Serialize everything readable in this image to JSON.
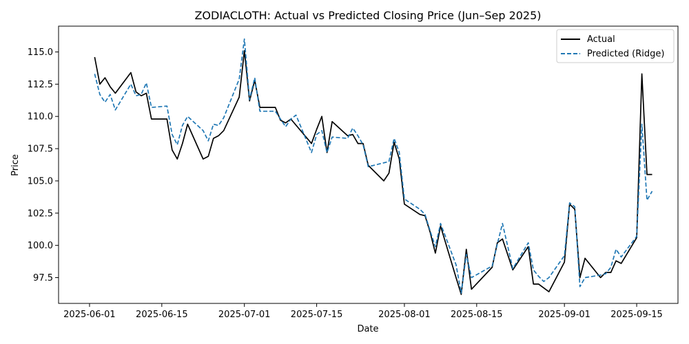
{
  "chart_data": {
    "type": "line",
    "title": "ZODIACLOTH: Actual vs Predicted Closing Price (Jun–Sep 2025)",
    "xlabel": "Date",
    "ylabel": "Price",
    "x_range": [
      "2025-05-26",
      "2025-09-23"
    ],
    "ylim": [
      95.5,
      117.0
    ],
    "x_ticks": [
      "2025-06-01",
      "2025-06-15",
      "2025-07-01",
      "2025-07-15",
      "2025-08-01",
      "2025-08-15",
      "2025-09-01",
      "2025-09-15"
    ],
    "y_ticks": [
      97.5,
      100.0,
      102.5,
      105.0,
      107.5,
      110.0,
      112.5,
      115.0
    ],
    "y_tick_labels": [
      "97.5",
      "100.0",
      "102.5",
      "105.0",
      "107.5",
      "110.0",
      "112.5",
      "115.0"
    ],
    "legend_position": "top-right",
    "series": [
      {
        "name": "Actual",
        "color": "#000000",
        "style": "solid",
        "points": [
          [
            "2025-06-02",
            114.6
          ],
          [
            "2025-06-03",
            112.5
          ],
          [
            "2025-06-04",
            113.0
          ],
          [
            "2025-06-05",
            112.3
          ],
          [
            "2025-06-06",
            111.8
          ],
          [
            "2025-06-09",
            113.4
          ],
          [
            "2025-06-10",
            111.9
          ],
          [
            "2025-06-11",
            111.6
          ],
          [
            "2025-06-12",
            111.8
          ],
          [
            "2025-06-13",
            109.8
          ],
          [
            "2025-06-16",
            109.8
          ],
          [
            "2025-06-17",
            107.4
          ],
          [
            "2025-06-18",
            106.7
          ],
          [
            "2025-06-19",
            107.9
          ],
          [
            "2025-06-20",
            109.4
          ],
          [
            "2025-06-23",
            106.7
          ],
          [
            "2025-06-24",
            106.9
          ],
          [
            "2025-06-25",
            108.3
          ],
          [
            "2025-06-26",
            108.5
          ],
          [
            "2025-06-27",
            108.9
          ],
          [
            "2025-06-30",
            111.5
          ],
          [
            "2025-07-01",
            115.1
          ],
          [
            "2025-07-02",
            111.2
          ],
          [
            "2025-07-03",
            112.8
          ],
          [
            "2025-07-04",
            110.7
          ],
          [
            "2025-07-07",
            110.7
          ],
          [
            "2025-07-08",
            109.7
          ],
          [
            "2025-07-09",
            109.5
          ],
          [
            "2025-07-10",
            109.8
          ],
          [
            "2025-07-14",
            107.9
          ],
          [
            "2025-07-15",
            109.0
          ],
          [
            "2025-07-16",
            110.0
          ],
          [
            "2025-07-17",
            107.2
          ],
          [
            "2025-07-18",
            109.6
          ],
          [
            "2025-07-21",
            108.5
          ],
          [
            "2025-07-22",
            108.6
          ],
          [
            "2025-07-23",
            107.9
          ],
          [
            "2025-07-24",
            107.9
          ],
          [
            "2025-07-25",
            106.2
          ],
          [
            "2025-07-28",
            105.0
          ],
          [
            "2025-07-29",
            105.6
          ],
          [
            "2025-07-30",
            108.0
          ],
          [
            "2025-07-31",
            106.7
          ],
          [
            "2025-08-01",
            103.2
          ],
          [
            "2025-08-04",
            102.4
          ],
          [
            "2025-08-05",
            102.3
          ],
          [
            "2025-08-06",
            101.0
          ],
          [
            "2025-08-07",
            99.4
          ],
          [
            "2025-08-08",
            101.5
          ],
          [
            "2025-08-11",
            97.5
          ],
          [
            "2025-08-12",
            96.2
          ],
          [
            "2025-08-13",
            99.7
          ],
          [
            "2025-08-14",
            96.6
          ],
          [
            "2025-08-18",
            98.3
          ],
          [
            "2025-08-19",
            100.2
          ],
          [
            "2025-08-20",
            100.5
          ],
          [
            "2025-08-22",
            98.1
          ],
          [
            "2025-08-25",
            99.9
          ],
          [
            "2025-08-26",
            97.0
          ],
          [
            "2025-08-27",
            97.0
          ],
          [
            "2025-08-29",
            96.4
          ],
          [
            "2025-09-01",
            98.7
          ],
          [
            "2025-09-02",
            103.2
          ],
          [
            "2025-09-03",
            102.8
          ],
          [
            "2025-09-04",
            97.5
          ],
          [
            "2025-09-05",
            99.0
          ],
          [
            "2025-09-08",
            97.5
          ],
          [
            "2025-09-09",
            97.9
          ],
          [
            "2025-09-10",
            97.9
          ],
          [
            "2025-09-11",
            98.8
          ],
          [
            "2025-09-12",
            98.6
          ],
          [
            "2025-09-15",
            100.6
          ],
          [
            "2025-09-16",
            113.3
          ],
          [
            "2025-09-17",
            105.5
          ],
          [
            "2025-09-18",
            105.5
          ]
        ]
      },
      {
        "name": "Predicted (Ridge)",
        "color": "#1f77b4",
        "style": "dashed",
        "points": [
          [
            "2025-06-02",
            113.3
          ],
          [
            "2025-06-03",
            111.7
          ],
          [
            "2025-06-04",
            111.1
          ],
          [
            "2025-06-05",
            111.7
          ],
          [
            "2025-06-06",
            110.5
          ],
          [
            "2025-06-09",
            112.5
          ],
          [
            "2025-06-10",
            111.6
          ],
          [
            "2025-06-11",
            111.7
          ],
          [
            "2025-06-12",
            112.6
          ],
          [
            "2025-06-13",
            110.7
          ],
          [
            "2025-06-16",
            110.8
          ],
          [
            "2025-06-17",
            108.6
          ],
          [
            "2025-06-18",
            107.8
          ],
          [
            "2025-06-19",
            109.3
          ],
          [
            "2025-06-20",
            110.0
          ],
          [
            "2025-06-23",
            108.9
          ],
          [
            "2025-06-24",
            108.1
          ],
          [
            "2025-06-25",
            109.4
          ],
          [
            "2025-06-26",
            109.3
          ],
          [
            "2025-06-27",
            109.9
          ],
          [
            "2025-06-30",
            112.9
          ],
          [
            "2025-07-01",
            116.0
          ],
          [
            "2025-07-02",
            111.3
          ],
          [
            "2025-07-03",
            113.0
          ],
          [
            "2025-07-04",
            110.4
          ],
          [
            "2025-07-07",
            110.4
          ],
          [
            "2025-07-08",
            109.8
          ],
          [
            "2025-07-09",
            109.2
          ],
          [
            "2025-07-10",
            109.8
          ],
          [
            "2025-07-11",
            110.1
          ],
          [
            "2025-07-14",
            107.2
          ],
          [
            "2025-07-15",
            108.6
          ],
          [
            "2025-07-16",
            108.9
          ],
          [
            "2025-07-17",
            107.2
          ],
          [
            "2025-07-18",
            108.4
          ],
          [
            "2025-07-21",
            108.3
          ],
          [
            "2025-07-22",
            109.1
          ],
          [
            "2025-07-23",
            108.5
          ],
          [
            "2025-07-24",
            107.8
          ],
          [
            "2025-07-25",
            106.1
          ],
          [
            "2025-07-29",
            106.5
          ],
          [
            "2025-07-30",
            108.3
          ],
          [
            "2025-07-31",
            107.2
          ],
          [
            "2025-08-01",
            103.6
          ],
          [
            "2025-08-04",
            102.8
          ],
          [
            "2025-08-05",
            102.4
          ],
          [
            "2025-08-06",
            101.1
          ],
          [
            "2025-08-07",
            99.9
          ],
          [
            "2025-08-08",
            101.7
          ],
          [
            "2025-08-11",
            98.5
          ],
          [
            "2025-08-12",
            96.3
          ],
          [
            "2025-08-13",
            99.3
          ],
          [
            "2025-08-14",
            97.5
          ],
          [
            "2025-08-18",
            98.4
          ],
          [
            "2025-08-19",
            100.1
          ],
          [
            "2025-08-20",
            101.7
          ],
          [
            "2025-08-22",
            98.2
          ],
          [
            "2025-08-25",
            100.2
          ],
          [
            "2025-08-26",
            98.1
          ],
          [
            "2025-08-27",
            97.6
          ],
          [
            "2025-08-28",
            97.2
          ],
          [
            "2025-08-29",
            97.5
          ],
          [
            "2025-09-01",
            99.2
          ],
          [
            "2025-09-02",
            103.3
          ],
          [
            "2025-09-03",
            103.0
          ],
          [
            "2025-09-04",
            96.8
          ],
          [
            "2025-09-05",
            97.5
          ],
          [
            "2025-09-08",
            97.7
          ],
          [
            "2025-09-09",
            97.8
          ],
          [
            "2025-09-10",
            98.3
          ],
          [
            "2025-09-11",
            99.7
          ],
          [
            "2025-09-12",
            99.1
          ],
          [
            "2025-09-15",
            100.7
          ],
          [
            "2025-09-16",
            109.4
          ],
          [
            "2025-09-17",
            103.5
          ],
          [
            "2025-09-18",
            104.2
          ]
        ]
      }
    ]
  }
}
